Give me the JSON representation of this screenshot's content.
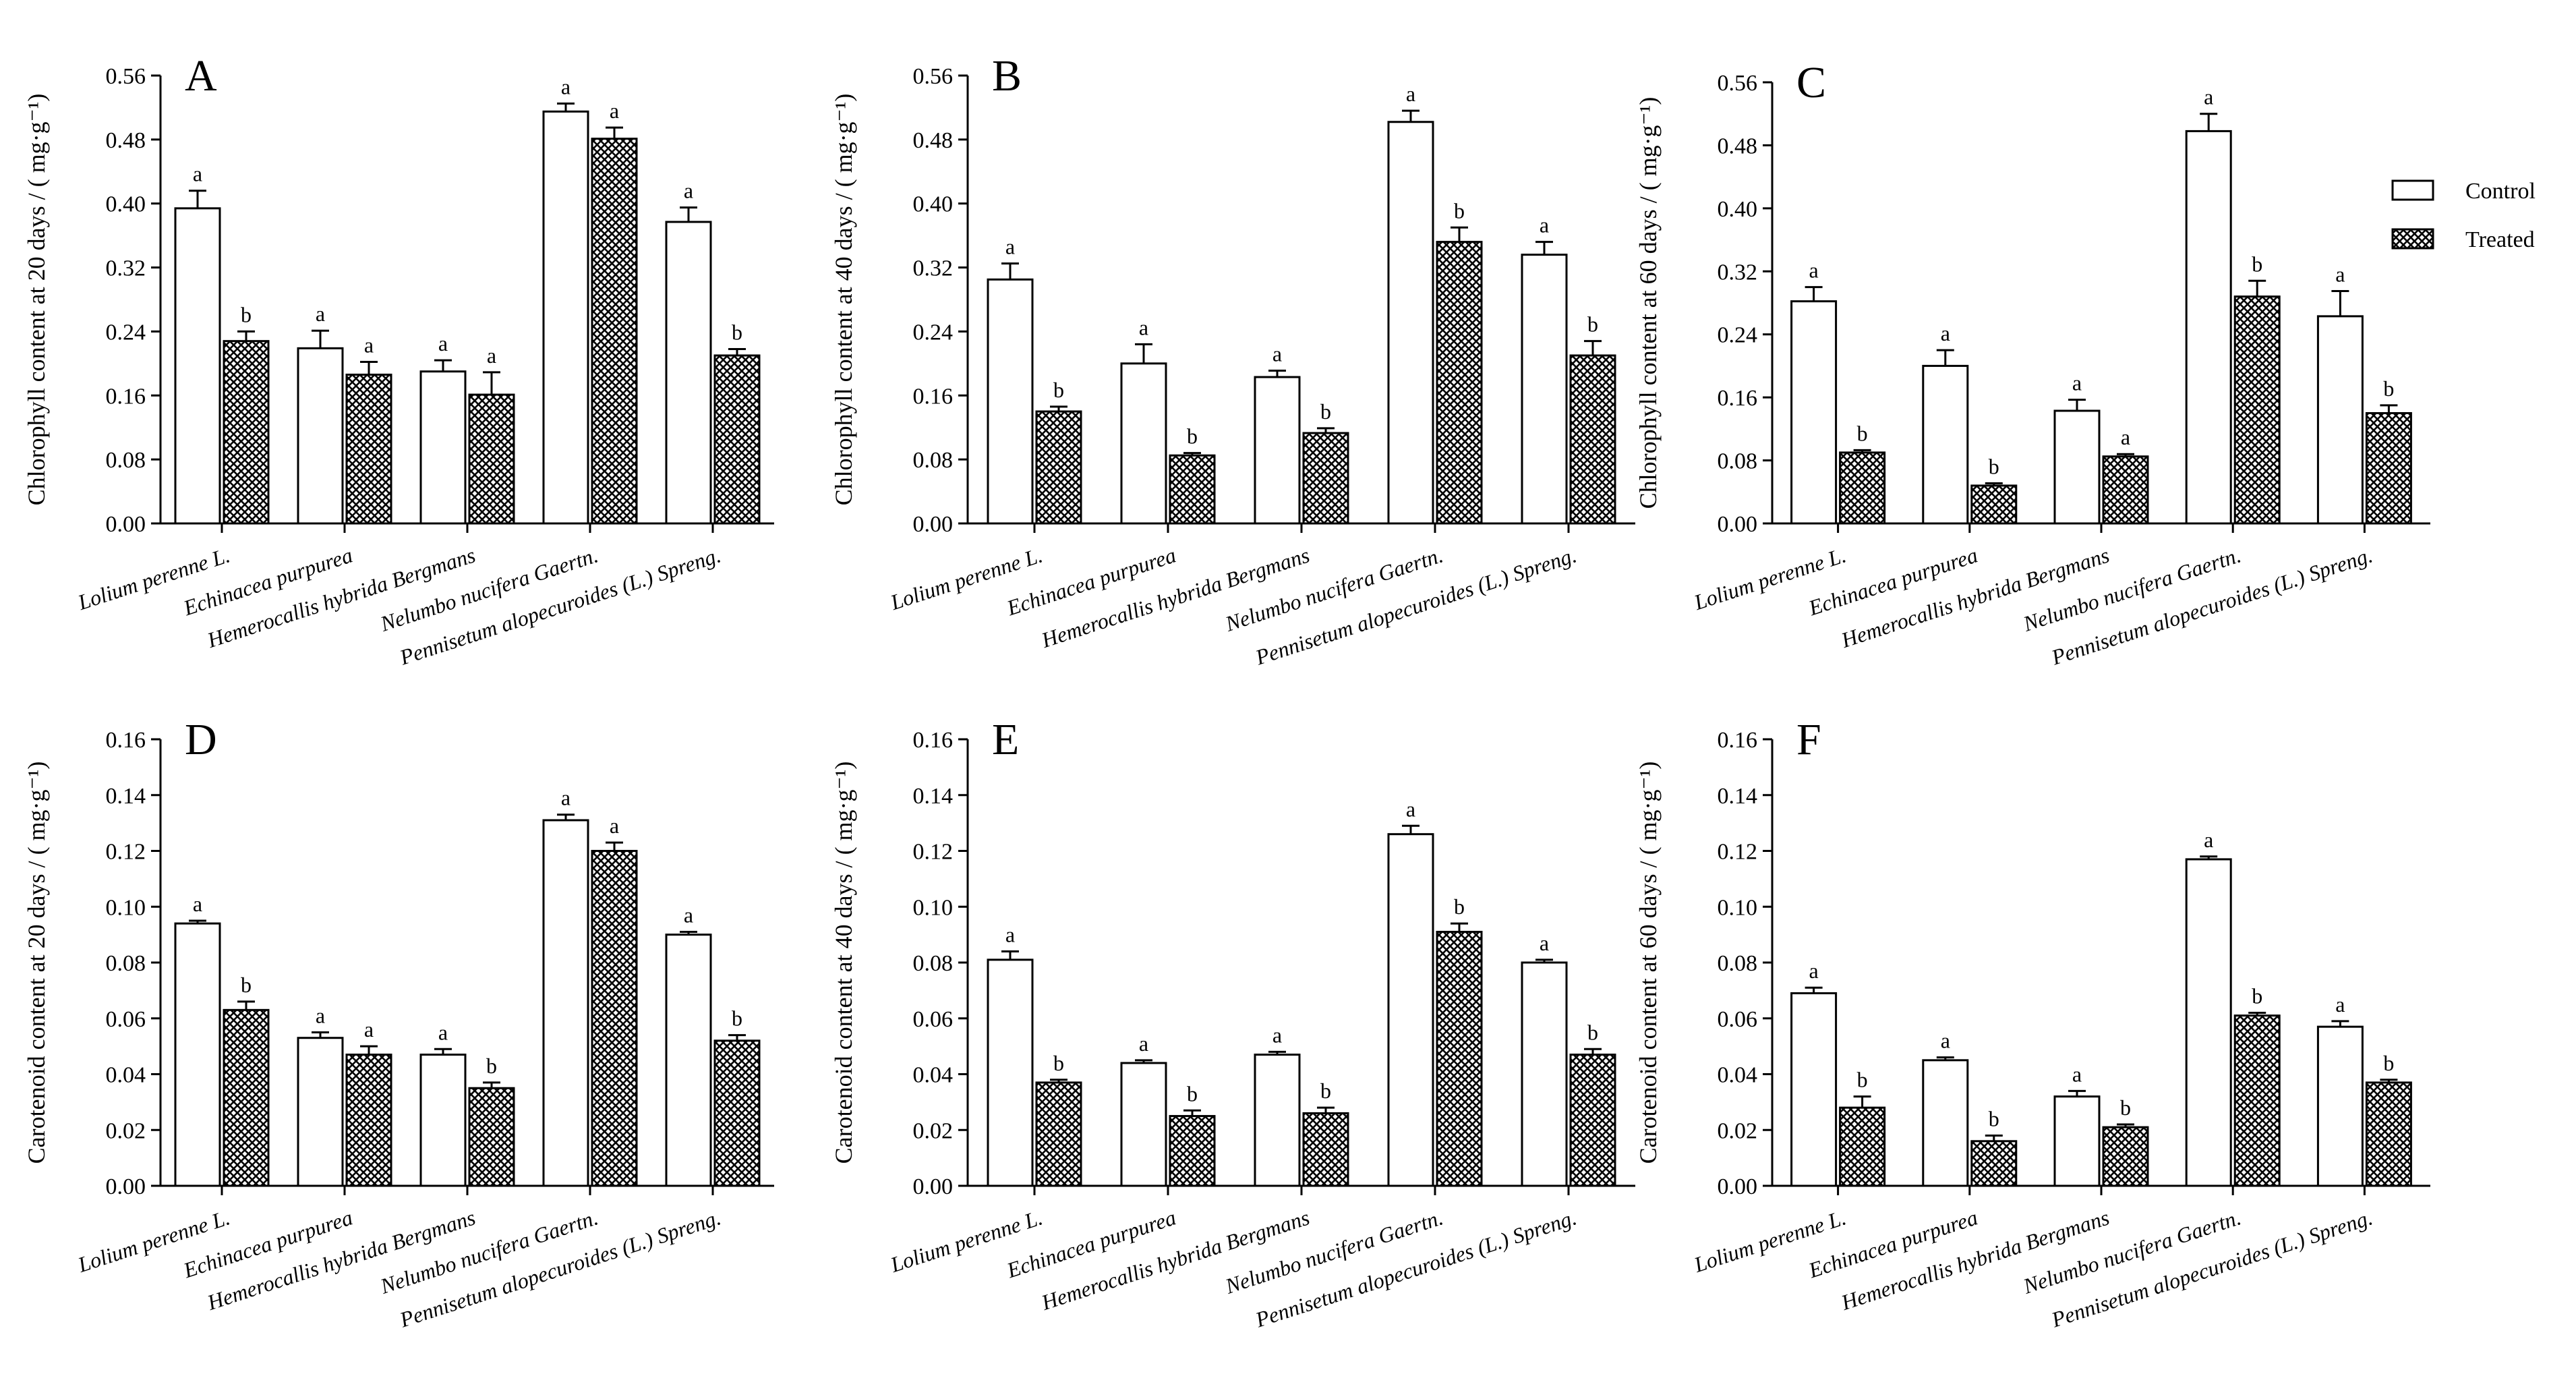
{
  "legend": [
    {
      "label": "Control",
      "pattern": "open"
    },
    {
      "label": "Treated",
      "pattern": "crosshatch"
    }
  ],
  "chart_data": [
    {
      "type": "bar",
      "panel": "A",
      "ylabel": "Chlorophyll content at 20 days / ( mg·g⁻¹)",
      "ylim": [
        0,
        0.56
      ],
      "yticks": [
        "0.00",
        "0.08",
        "0.16",
        "0.24",
        "0.32",
        "0.40",
        "0.48",
        "0.56"
      ],
      "categories": [
        "Lolium perenne L.",
        "Echinacea purpurea",
        "Hemerocallis hybrida Bergmans",
        "Nelumbo nucifera Gaertn.",
        "Pennisetum alopecuroides (L.) Spreng."
      ],
      "series": [
        {
          "name": "Control",
          "values": [
            0.394,
            0.219,
            0.19,
            0.515,
            0.377
          ],
          "errors": [
            0.022,
            0.022,
            0.014,
            0.01,
            0.018
          ],
          "letters": [
            "a",
            "a",
            "a",
            "a",
            "a"
          ]
        },
        {
          "name": "Treated",
          "values": [
            0.228,
            0.186,
            0.161,
            0.481,
            0.21
          ],
          "errors": [
            0.012,
            0.016,
            0.028,
            0.014,
            0.008
          ],
          "letters": [
            "b",
            "a",
            "a",
            "a",
            "b"
          ]
        }
      ]
    },
    {
      "type": "bar",
      "panel": "B",
      "ylabel": "Chlorophyll content at 40 days / ( mg·g⁻¹)",
      "ylim": [
        0,
        0.56
      ],
      "yticks": [
        "0.00",
        "0.08",
        "0.16",
        "0.24",
        "0.32",
        "0.40",
        "0.48",
        "0.56"
      ],
      "categories": [
        "Lolium perenne L.",
        "Echinacea purpurea",
        "Hemerocallis hybrida Bergmans",
        "Nelumbo nucifera Gaertn.",
        "Pennisetum alopecuroides (L.) Spreng."
      ],
      "series": [
        {
          "name": "Control",
          "values": [
            0.305,
            0.2,
            0.183,
            0.502,
            0.336
          ],
          "errors": [
            0.02,
            0.024,
            0.008,
            0.014,
            0.016
          ],
          "letters": [
            "a",
            "a",
            "a",
            "a",
            "a"
          ]
        },
        {
          "name": "Treated",
          "values": [
            0.14,
            0.085,
            0.113,
            0.352,
            0.21
          ],
          "errors": [
            0.006,
            0.003,
            0.006,
            0.018,
            0.018
          ],
          "letters": [
            "b",
            "b",
            "b",
            "b",
            "b"
          ]
        }
      ]
    },
    {
      "type": "bar",
      "panel": "C",
      "ylabel": "Chlorophyll content at 60 days / ( mg·g⁻¹)",
      "ylim": [
        0,
        0.56
      ],
      "yticks": [
        "0.00",
        "0.08",
        "0.16",
        "0.24",
        "0.32",
        "0.40",
        "0.48",
        "0.56"
      ],
      "categories": [
        "Lolium perenne L.",
        "Echinacea purpurea",
        "Hemerocallis hybrida Bergmans",
        "Nelumbo nucifera Gaertn.",
        "Pennisetum alopecuroides (L.) Spreng."
      ],
      "series": [
        {
          "name": "Control",
          "values": [
            0.282,
            0.2,
            0.143,
            0.498,
            0.263
          ],
          "errors": [
            0.018,
            0.02,
            0.014,
            0.022,
            0.032
          ],
          "letters": [
            "a",
            "a",
            "a",
            "a",
            "a"
          ]
        },
        {
          "name": "Treated",
          "values": [
            0.09,
            0.048,
            0.085,
            0.288,
            0.14
          ],
          "errors": [
            0.003,
            0.003,
            0.003,
            0.02,
            0.01
          ],
          "letters": [
            "b",
            "b",
            "a",
            "b",
            "b"
          ]
        }
      ]
    },
    {
      "type": "bar",
      "panel": "D",
      "ylabel": "Carotenoid content at 20 days / ( mg·g⁻¹)",
      "ylim": [
        0,
        0.16
      ],
      "yticks": [
        "0.00",
        "0.02",
        "0.04",
        "0.06",
        "0.08",
        "0.10",
        "0.12",
        "0.14",
        "0.16"
      ],
      "categories": [
        "Lolium perenne L.",
        "Echinacea purpurea",
        "Hemerocallis hybrida Bergmans",
        "Nelumbo nucifera Gaertn.",
        "Pennisetum alopecuroides (L.) Spreng."
      ],
      "series": [
        {
          "name": "Control",
          "values": [
            0.094,
            0.053,
            0.047,
            0.131,
            0.09
          ],
          "errors": [
            0.001,
            0.002,
            0.002,
            0.002,
            0.001
          ],
          "letters": [
            "a",
            "a",
            "a",
            "a",
            "a"
          ]
        },
        {
          "name": "Treated",
          "values": [
            0.063,
            0.047,
            0.035,
            0.12,
            0.052
          ],
          "errors": [
            0.003,
            0.003,
            0.002,
            0.003,
            0.002
          ],
          "letters": [
            "b",
            "a",
            "b",
            "a",
            "b"
          ]
        }
      ]
    },
    {
      "type": "bar",
      "panel": "E",
      "ylabel": "Carotenoid content at 40 days / ( mg·g⁻¹)",
      "ylim": [
        0,
        0.16
      ],
      "yticks": [
        "0.00",
        "0.02",
        "0.04",
        "0.06",
        "0.08",
        "0.10",
        "0.12",
        "0.14",
        "0.16"
      ],
      "categories": [
        "Lolium perenne L.",
        "Echinacea purpurea",
        "Hemerocallis hybrida Bergmans",
        "Nelumbo nucifera Gaertn.",
        "Pennisetum alopecuroides (L.) Spreng."
      ],
      "series": [
        {
          "name": "Control",
          "values": [
            0.081,
            0.044,
            0.047,
            0.126,
            0.08
          ],
          "errors": [
            0.003,
            0.001,
            0.001,
            0.003,
            0.001
          ],
          "letters": [
            "a",
            "a",
            "a",
            "a",
            "a"
          ]
        },
        {
          "name": "Treated",
          "values": [
            0.037,
            0.025,
            0.026,
            0.091,
            0.047
          ],
          "errors": [
            0.001,
            0.002,
            0.002,
            0.003,
            0.002
          ],
          "letters": [
            "b",
            "b",
            "b",
            "b",
            "b"
          ]
        }
      ]
    },
    {
      "type": "bar",
      "panel": "F",
      "ylabel": "Carotenoid content at 60 days / ( mg·g⁻¹)",
      "ylim": [
        0,
        0.16
      ],
      "yticks": [
        "0.00",
        "0.02",
        "0.04",
        "0.06",
        "0.08",
        "0.10",
        "0.12",
        "0.14",
        "0.16"
      ],
      "categories": [
        "Lolium perenne L.",
        "Echinacea purpurea",
        "Hemerocallis hybrida Bergmans",
        "Nelumbo nucifera Gaertn.",
        "Pennisetum alopecuroides (L.) Spreng."
      ],
      "series": [
        {
          "name": "Control",
          "values": [
            0.069,
            0.045,
            0.032,
            0.117,
            0.057
          ],
          "errors": [
            0.002,
            0.001,
            0.002,
            0.001,
            0.002
          ],
          "letters": [
            "a",
            "a",
            "a",
            "a",
            "a"
          ]
        },
        {
          "name": "Treated",
          "values": [
            0.028,
            0.016,
            0.021,
            0.061,
            0.037
          ],
          "errors": [
            0.004,
            0.002,
            0.001,
            0.001,
            0.001
          ],
          "letters": [
            "b",
            "b",
            "b",
            "b",
            "b"
          ]
        }
      ]
    }
  ]
}
